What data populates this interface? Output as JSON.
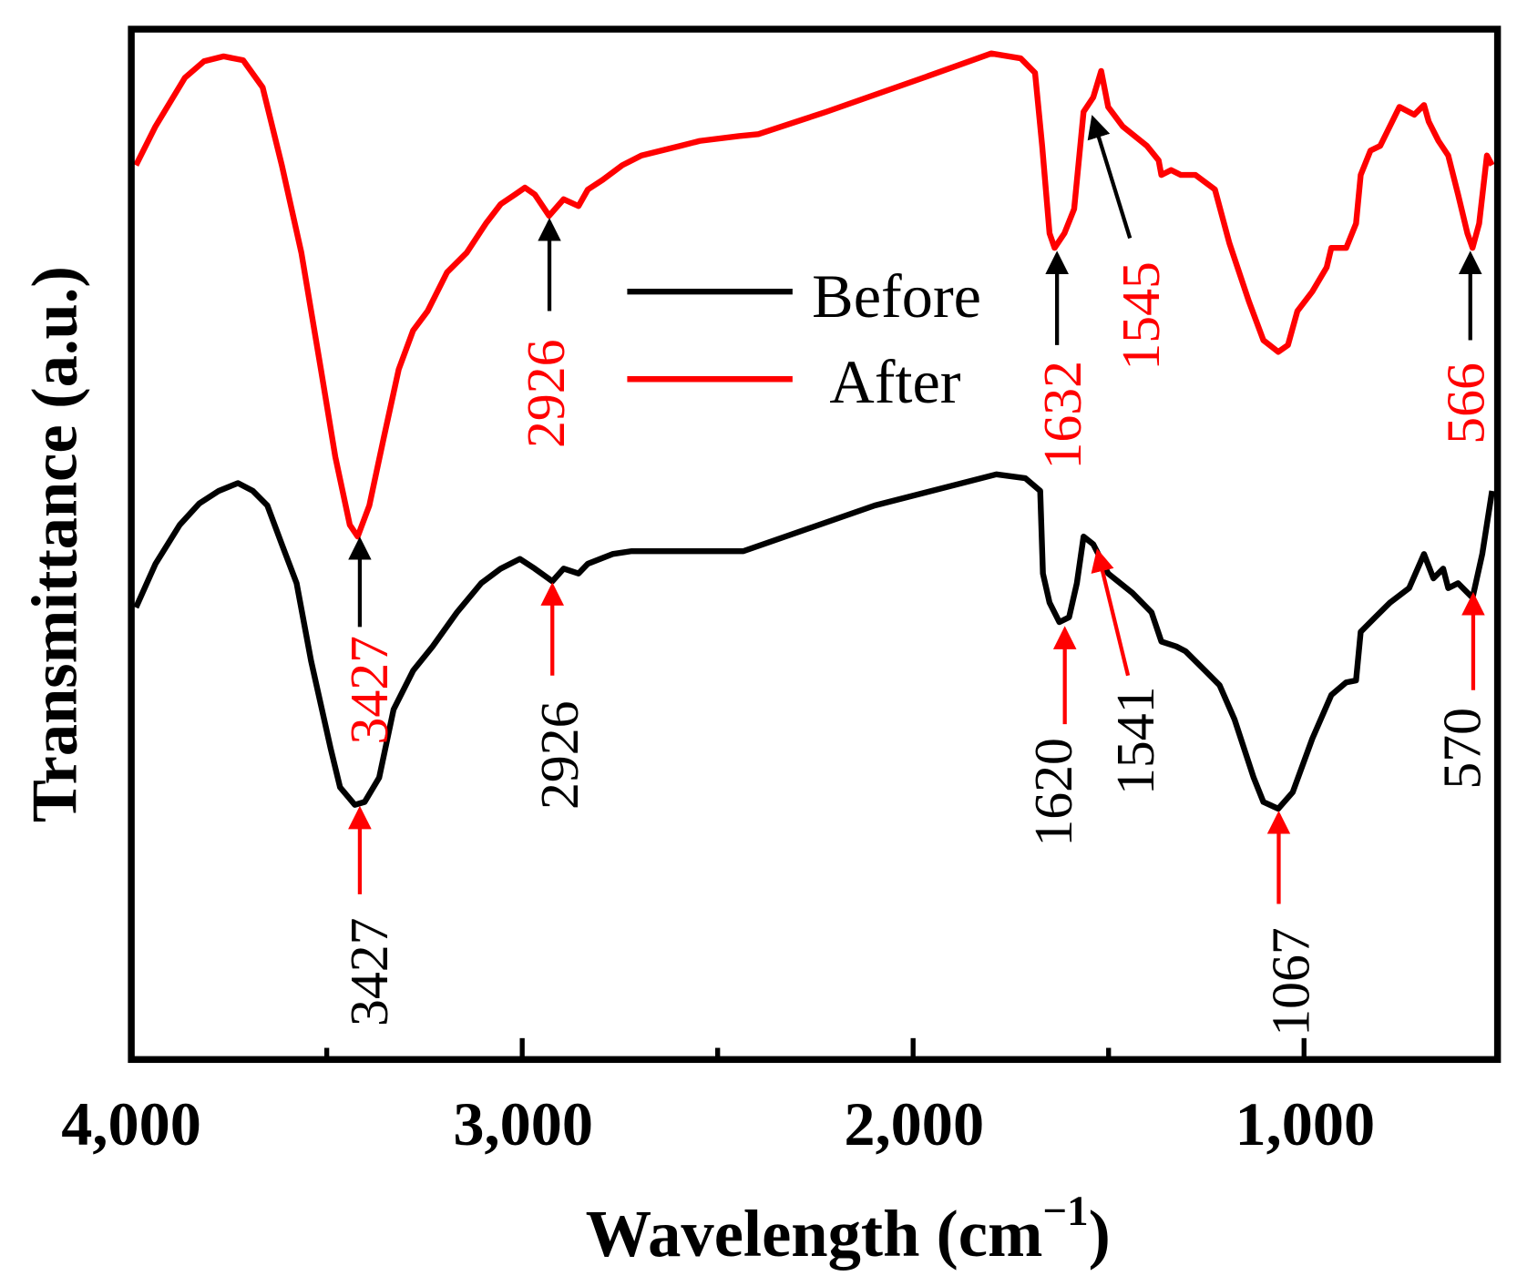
{
  "chart_data": {
    "type": "line",
    "title": "",
    "xlabel": "Wavelength (cm",
    "xlabel_sup": "−1",
    "xlabel_close": ")",
    "ylabel": "Transmittance (a.u.)",
    "xlim": [
      4000,
      505
    ],
    "ylim": [
      0,
      106
    ],
    "x_reversed": true,
    "grid": false,
    "legend_position": "top-center",
    "x_ticks": [
      {
        "value": 4000,
        "label": "4,000"
      },
      {
        "value": 3000,
        "label": "3,000"
      },
      {
        "value": 2000,
        "label": "2,000"
      },
      {
        "value": 1000,
        "label": "1,000"
      }
    ],
    "x_minor_ticks": [
      3500,
      2500,
      1500
    ],
    "series": [
      {
        "name": "Before",
        "color": "#000000",
        "points": [
          [
            3988,
            46.5
          ],
          [
            3938,
            51
          ],
          [
            3876,
            55
          ],
          [
            3826,
            57.2
          ],
          [
            3776,
            58.5
          ],
          [
            3727,
            59.3
          ],
          [
            3689,
            58.5
          ],
          [
            3652,
            57
          ],
          [
            3615,
            53
          ],
          [
            3577,
            49
          ],
          [
            3540,
            41
          ],
          [
            3490,
            32
          ],
          [
            3466,
            28
          ],
          [
            3428,
            26.2
          ],
          [
            3403,
            26.5
          ],
          [
            3366,
            29
          ],
          [
            3329,
            36
          ],
          [
            3279,
            40
          ],
          [
            3229,
            42.5
          ],
          [
            3167,
            46
          ],
          [
            3105,
            49
          ],
          [
            3055,
            50.5
          ],
          [
            3006,
            51.5
          ],
          [
            2968,
            50.5
          ],
          [
            2923,
            49.2
          ],
          [
            2894,
            50.5
          ],
          [
            2856,
            50
          ],
          [
            2832,
            51
          ],
          [
            2769,
            52
          ],
          [
            2720,
            52.3
          ],
          [
            2595,
            52.3
          ],
          [
            2434,
            52.3
          ],
          [
            2098,
            57
          ],
          [
            1787,
            60.2
          ],
          [
            1713,
            59.8
          ],
          [
            1675,
            58.5
          ],
          [
            1668,
            50
          ],
          [
            1651,
            47
          ],
          [
            1626,
            45
          ],
          [
            1601,
            45.5
          ],
          [
            1581,
            49
          ],
          [
            1564,
            53.8
          ],
          [
            1539,
            53
          ],
          [
            1501,
            50
          ],
          [
            1439,
            48
          ],
          [
            1390,
            46
          ],
          [
            1365,
            43
          ],
          [
            1327,
            42.5
          ],
          [
            1303,
            42
          ],
          [
            1253,
            40
          ],
          [
            1216,
            38.5
          ],
          [
            1178,
            35
          ],
          [
            1129,
            29
          ],
          [
            1104,
            26.5
          ],
          [
            1066,
            25.8
          ],
          [
            1029,
            27.5
          ],
          [
            979,
            33
          ],
          [
            930,
            37.5
          ],
          [
            892,
            38.8
          ],
          [
            867,
            39
          ],
          [
            855,
            44
          ],
          [
            818,
            45.5
          ],
          [
            780,
            47
          ],
          [
            731,
            48.5
          ],
          [
            693,
            52
          ],
          [
            669,
            49.5
          ],
          [
            644,
            50.5
          ],
          [
            631,
            48.5
          ],
          [
            606,
            49
          ],
          [
            569,
            47.5
          ],
          [
            544,
            52
          ],
          [
            519,
            58.5
          ]
        ]
      },
      {
        "name": "After",
        "color": "#ff0000",
        "points": [
          [
            3988,
            92
          ],
          [
            3938,
            96
          ],
          [
            3863,
            101
          ],
          [
            3814,
            102.7
          ],
          [
            3764,
            103.2
          ],
          [
            3714,
            102.8
          ],
          [
            3664,
            100
          ],
          [
            3615,
            92
          ],
          [
            3565,
            83
          ],
          [
            3515,
            71
          ],
          [
            3478,
            62
          ],
          [
            3441,
            55
          ],
          [
            3421,
            53.8
          ],
          [
            3391,
            57
          ],
          [
            3354,
            64
          ],
          [
            3316,
            71
          ],
          [
            3279,
            75
          ],
          [
            3242,
            77
          ],
          [
            3192,
            81
          ],
          [
            3142,
            83
          ],
          [
            3093,
            86
          ],
          [
            3055,
            88
          ],
          [
            3018,
            89
          ],
          [
            2993,
            89.7
          ],
          [
            2968,
            89
          ],
          [
            2931,
            86.8
          ],
          [
            2894,
            88.5
          ],
          [
            2856,
            87.8
          ],
          [
            2832,
            89.5
          ],
          [
            2794,
            90.5
          ],
          [
            2744,
            92
          ],
          [
            2695,
            93
          ],
          [
            2595,
            94
          ],
          [
            2546,
            94.5
          ],
          [
            2446,
            95
          ],
          [
            2396,
            95.2
          ],
          [
            2222,
            97.5
          ],
          [
            1974,
            101
          ],
          [
            1800,
            103.5
          ],
          [
            1725,
            103
          ],
          [
            1688,
            101.5
          ],
          [
            1670,
            94
          ],
          [
            1651,
            85
          ],
          [
            1638,
            83.5
          ],
          [
            1613,
            85
          ],
          [
            1588,
            87.5
          ],
          [
            1564,
            97.5
          ],
          [
            1539,
            99
          ],
          [
            1519,
            101.7
          ],
          [
            1501,
            98
          ],
          [
            1464,
            96
          ],
          [
            1402,
            94
          ],
          [
            1372,
            92.5
          ],
          [
            1365,
            91
          ],
          [
            1340,
            91.5
          ],
          [
            1315,
            91
          ],
          [
            1278,
            91
          ],
          [
            1228,
            89.5
          ],
          [
            1191,
            84
          ],
          [
            1141,
            78
          ],
          [
            1104,
            74
          ],
          [
            1066,
            72.8
          ],
          [
            1041,
            73.5
          ],
          [
            1017,
            77
          ],
          [
            979,
            79
          ],
          [
            942,
            81.5
          ],
          [
            930,
            83.5
          ],
          [
            892,
            83.5
          ],
          [
            867,
            86
          ],
          [
            855,
            91
          ],
          [
            830,
            93.5
          ],
          [
            805,
            94
          ],
          [
            756,
            98
          ],
          [
            718,
            97.2
          ],
          [
            693,
            98.2
          ],
          [
            681,
            96.5
          ],
          [
            656,
            94.5
          ],
          [
            631,
            93
          ],
          [
            606,
            89
          ],
          [
            582,
            85
          ],
          [
            569,
            83.5
          ],
          [
            552,
            86
          ],
          [
            532,
            93
          ],
          [
            519,
            92
          ]
        ]
      }
    ],
    "annotations": {
      "after": [
        {
          "label": "3427",
          "color": "#ff0000",
          "arrow_color": "#000000"
        },
        {
          "label": "2926",
          "color": "#ff0000",
          "arrow_color": "#000000"
        },
        {
          "label": "1632",
          "color": "#ff0000",
          "arrow_color": "#000000"
        },
        {
          "label": "1545",
          "color": "#ff0000",
          "arrow_color": "#000000"
        },
        {
          "label": "566",
          "color": "#ff0000",
          "arrow_color": "#000000"
        }
      ],
      "before": [
        {
          "label": "3427",
          "color": "#000000",
          "arrow_color": "#ff0000"
        },
        {
          "label": "2926",
          "color": "#000000",
          "arrow_color": "#ff0000"
        },
        {
          "label": "1620",
          "color": "#000000",
          "arrow_color": "#ff0000"
        },
        {
          "label": "1541",
          "color": "#000000",
          "arrow_color": "#ff0000"
        },
        {
          "label": "1067",
          "color": "#000000",
          "arrow_color": "#ff0000"
        },
        {
          "label": "570",
          "color": "#000000",
          "arrow_color": "#ff0000"
        }
      ]
    }
  }
}
